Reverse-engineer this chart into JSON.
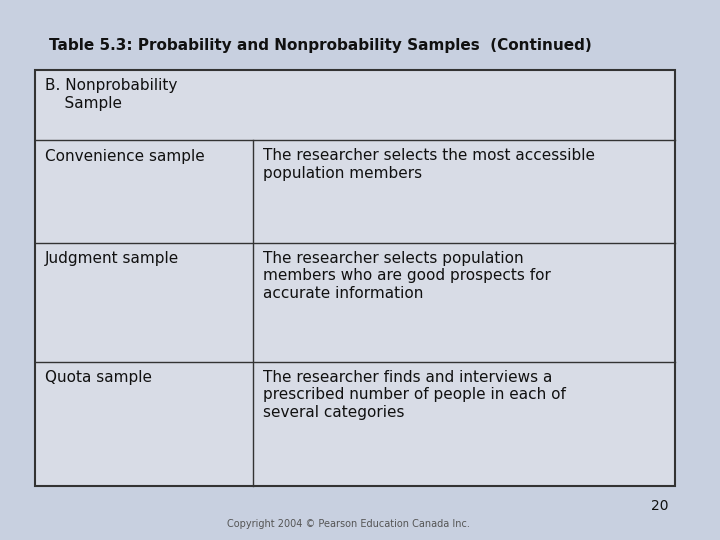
{
  "title": "Table 5.3: Probability and Nonprobability Samples  (Continued)",
  "background_color": "#c8d0e0",
  "table_bg_color": "#d8dce6",
  "table_border_color": "#333333",
  "title_fontsize": 11,
  "content_fontsize": 11,
  "header_text": "B. Nonprobability\n    Sample",
  "rows": [
    {
      "left": "Convenience sample",
      "right": "The researcher selects the most accessible\npopulation members"
    },
    {
      "left": "Judgment sample",
      "right": "The researcher selects population\nmembers who are good prospects for\naccurate information"
    },
    {
      "left": "Quota sample",
      "right": "The researcher finds and interviews a\nprescribed number of people in each of\nseveral categories"
    }
  ],
  "page_number": "20",
  "copyright_text": "Copyright 2004 © Pearson Education Canada Inc.",
  "col_split": 0.34
}
